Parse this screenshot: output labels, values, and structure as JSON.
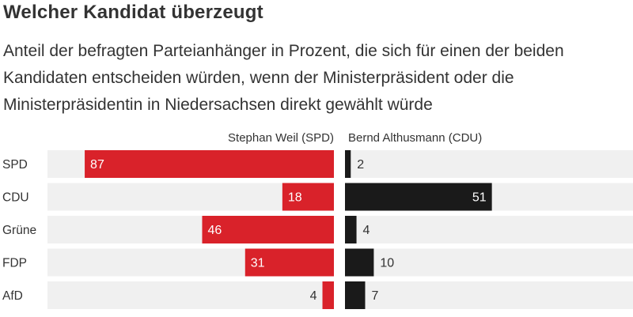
{
  "title": "Welcher Kandidat überzeugt",
  "subtitle": "Anteil der befragten Parteianhänger in Prozent, die sich für einen der beiden Kandidaten entscheiden würden, wenn der Ministerpräsident oder die Ministerpräsidentin in Niedersachsen direkt gewählt würde",
  "colors": {
    "spd": "#d9222a",
    "cdu": "#1a1a1a",
    "track": "#f0f0f0",
    "text": "#333333"
  },
  "chart_data": {
    "type": "bar",
    "orientation": "horizontal-diverging",
    "categories": [
      "SPD",
      "CDU",
      "Grüne",
      "FDP",
      "AfD"
    ],
    "series": [
      {
        "name": "Stephan Weil (SPD)",
        "values": [
          87,
          18,
          46,
          31,
          4
        ],
        "color": "#d9222a",
        "direction": "left"
      },
      {
        "name": "Bernd Althusmann (CDU)",
        "values": [
          2,
          51,
          4,
          10,
          7
        ],
        "color": "#1a1a1a",
        "direction": "right"
      }
    ],
    "xlim": [
      0,
      100
    ]
  }
}
